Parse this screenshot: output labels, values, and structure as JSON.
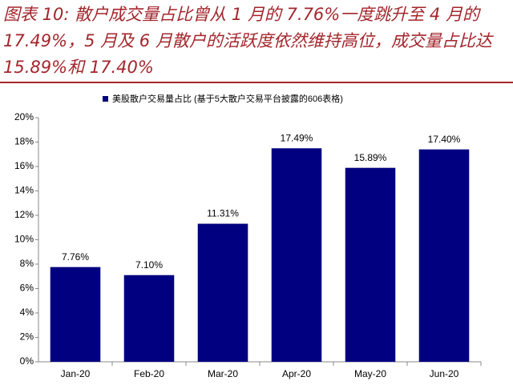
{
  "chart_data": {
    "type": "bar",
    "title": "图表 10:  散户成交量占比曾从 1 月的 7.76%一度跳升至 4 月的 17.49%，5 月及 6 月散户的活跃度依然维持高位，成交量占比达 15.89%和 17.40%",
    "categories": [
      "Jan-20",
      "Feb-20",
      "Mar-20",
      "Apr-20",
      "May-20",
      "Jun-20"
    ],
    "series": [
      {
        "name": "美股散户交易量占比 (基于5大散户交易平台披露的606表格)",
        "color": "#000080",
        "values": [
          7.76,
          7.1,
          11.31,
          17.49,
          15.89,
          17.4
        ],
        "value_labels": [
          "7.76%",
          "7.10%",
          "11.31%",
          "17.49%",
          "15.89%",
          "17.40%"
        ]
      }
    ],
    "ylim": [
      0,
      20
    ],
    "yticks": [
      {
        "value": 0,
        "label": "0%"
      },
      {
        "value": 2,
        "label": "2%"
      },
      {
        "value": 4,
        "label": "4%"
      },
      {
        "value": 6,
        "label": "6%"
      },
      {
        "value": 8,
        "label": "8%"
      },
      {
        "value": 10,
        "label": "10%"
      },
      {
        "value": 12,
        "label": "12%"
      },
      {
        "value": 14,
        "label": "14%"
      },
      {
        "value": 16,
        "label": "16%"
      },
      {
        "value": 18,
        "label": "18%"
      },
      {
        "value": 20,
        "label": "20%"
      }
    ],
    "legend": "top"
  }
}
